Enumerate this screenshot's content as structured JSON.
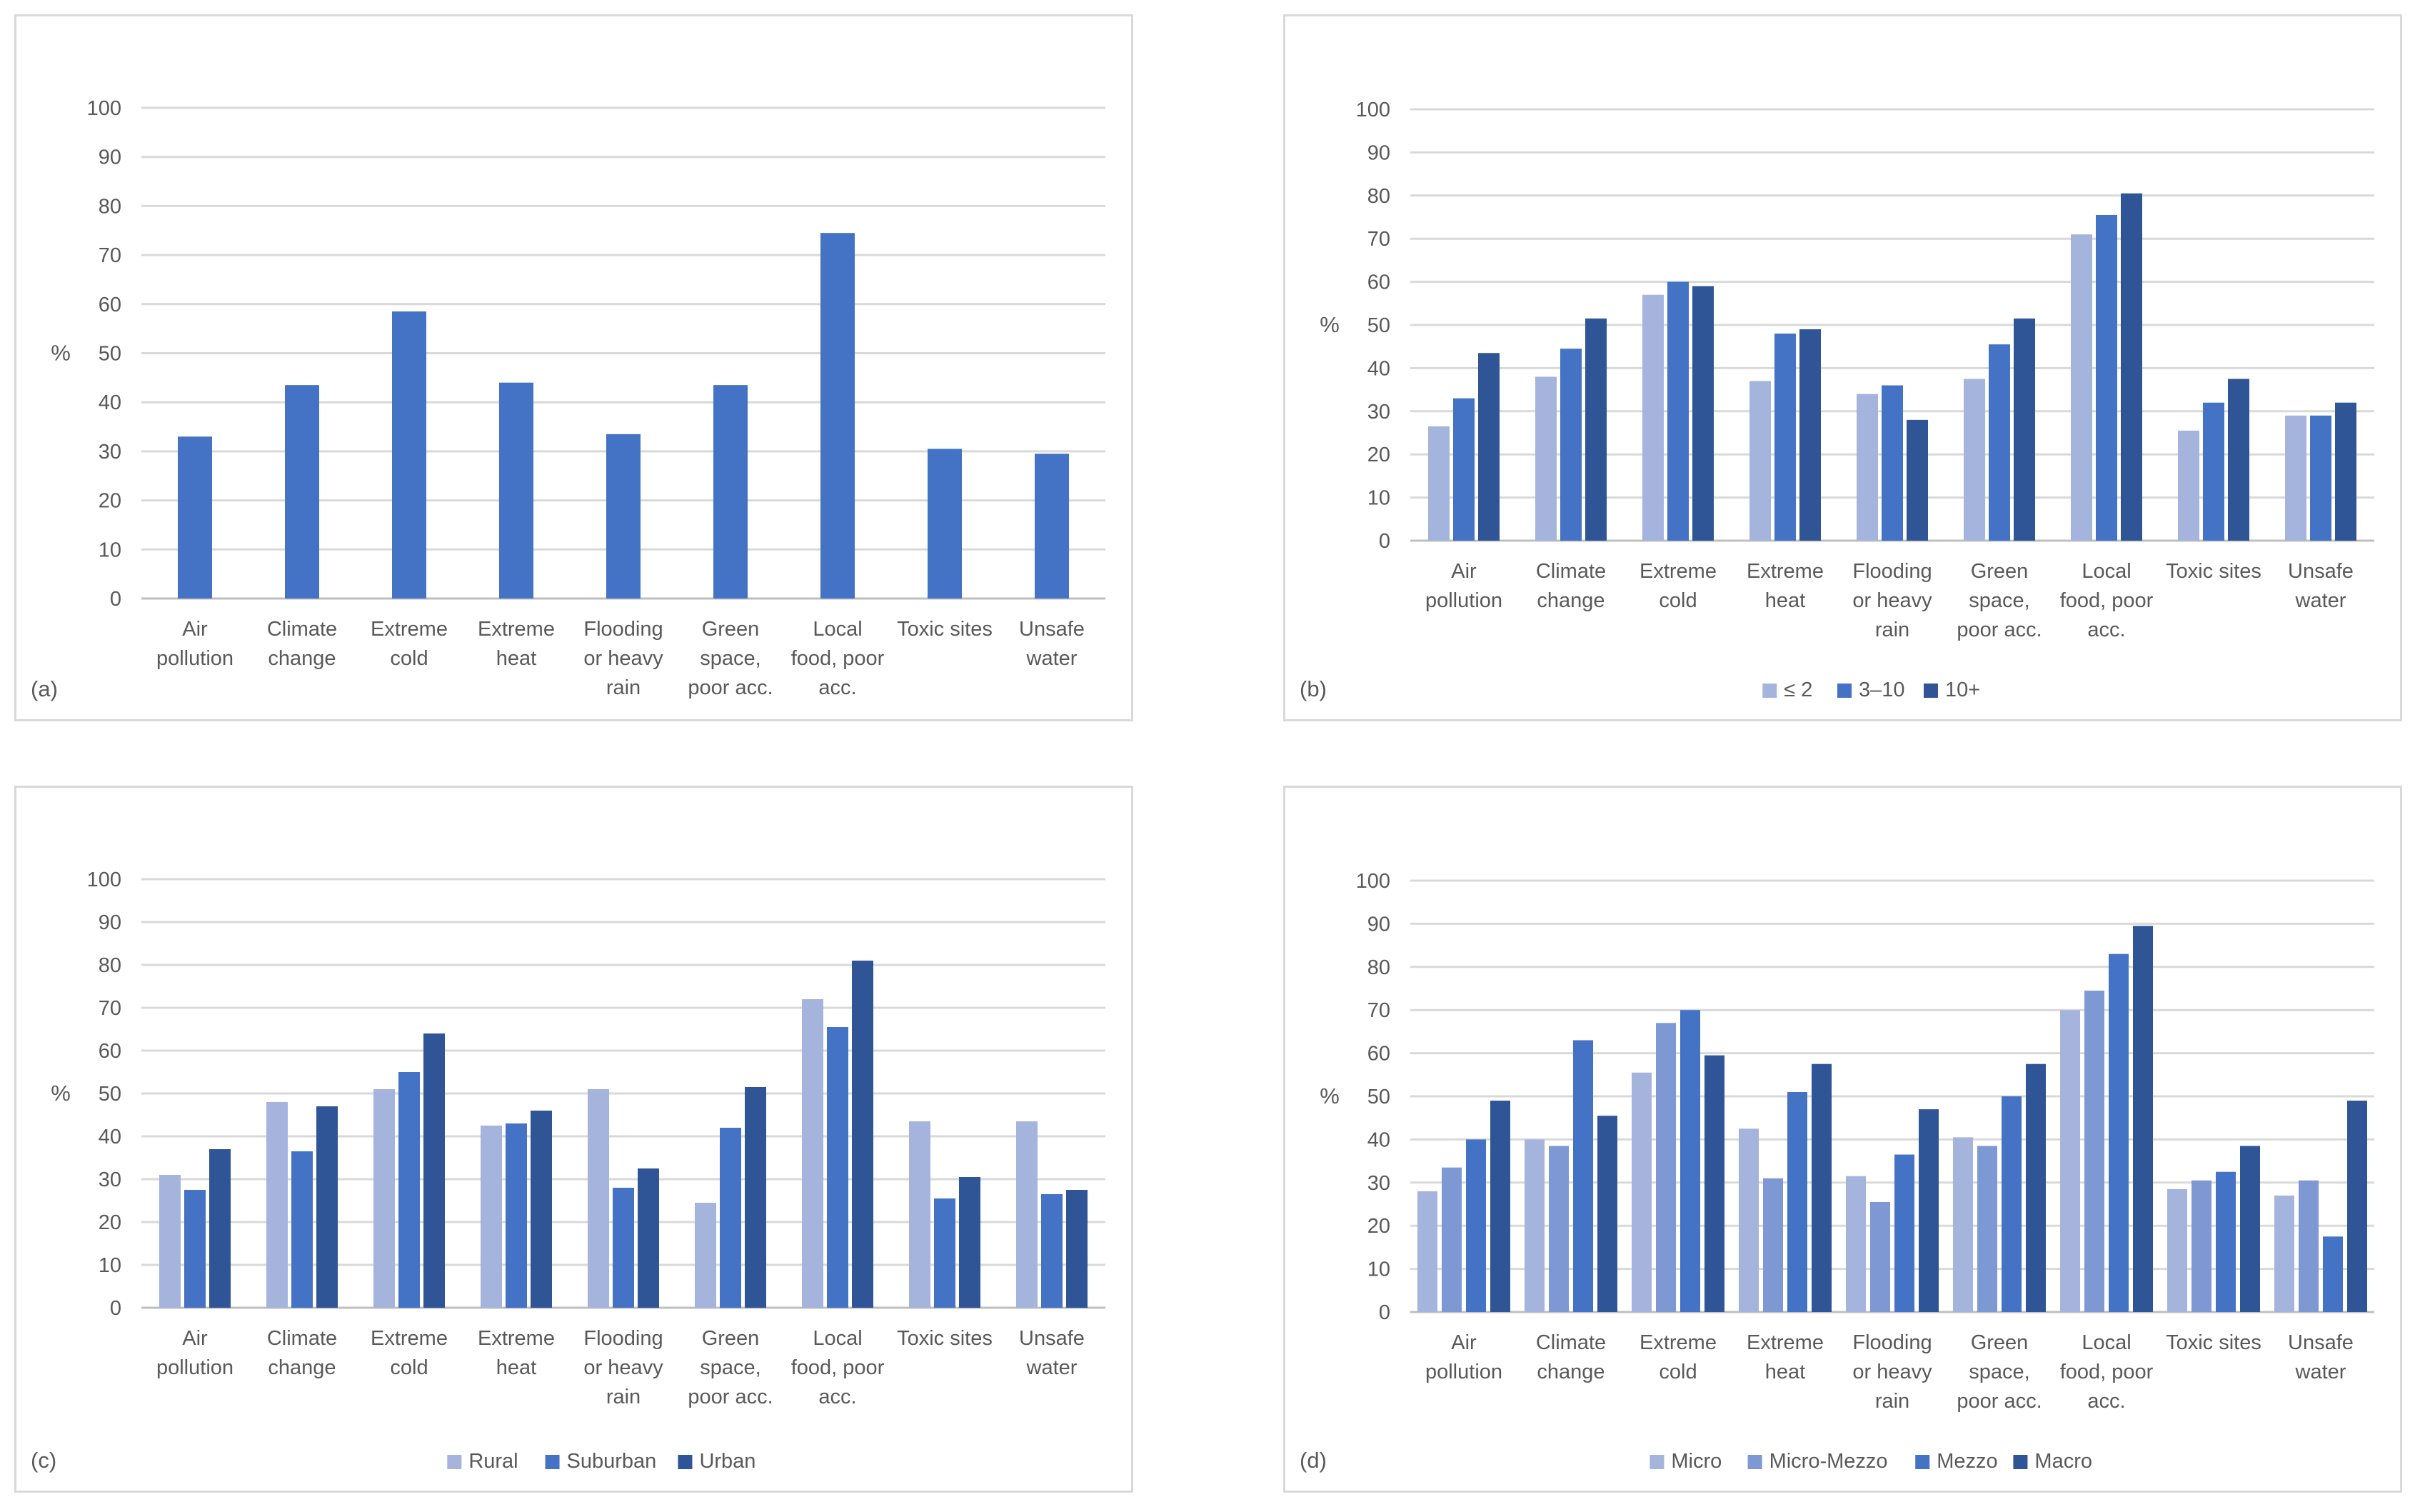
{
  "colors": {
    "single": "#4472c4",
    "light": "#a5b4dc",
    "lightmid": "#7e98d4",
    "mid": "#4472c4",
    "dark": "#2f5597",
    "grid": "#d9d9d9",
    "axis": "#bfbfbf",
    "text": "#595959"
  },
  "chart_data": [
    {
      "panel_label": "(a)",
      "type": "bar",
      "ylabel": "%",
      "ylim": [
        0,
        100
      ],
      "yticks": [
        "0",
        "10",
        "20",
        "30",
        "40",
        "50",
        "60",
        "70",
        "80",
        "90",
        "100"
      ],
      "categories": [
        [
          "Air",
          "pollution"
        ],
        [
          "Climate",
          "change"
        ],
        [
          "Extreme",
          "cold"
        ],
        [
          "Extreme",
          "heat"
        ],
        [
          "Flooding",
          "or heavy",
          "rain"
        ],
        [
          "Green",
          "space,",
          "poor acc."
        ],
        [
          "Local",
          "food, poor",
          "acc."
        ],
        [
          "Toxic sites"
        ],
        [
          "Unsafe",
          "water"
        ]
      ],
      "series": [
        {
          "name": "",
          "color": "#4472c4",
          "values": [
            33,
            43.5,
            58.5,
            44,
            33.5,
            43.5,
            74.5,
            30.5,
            29.5
          ]
        }
      ],
      "legend": []
    },
    {
      "panel_label": "(b)",
      "type": "bar",
      "ylabel": "%",
      "ylim": [
        0,
        100
      ],
      "yticks": [
        "0",
        "10",
        "20",
        "30",
        "40",
        "50",
        "60",
        "70",
        "80",
        "90",
        "100"
      ],
      "categories": [
        [
          "Air",
          "pollution"
        ],
        [
          "Climate",
          "change"
        ],
        [
          "Extreme",
          "cold"
        ],
        [
          "Extreme",
          "heat"
        ],
        [
          "Flooding",
          "or heavy",
          "rain"
        ],
        [
          "Green",
          "space,",
          "poor acc."
        ],
        [
          "Local",
          "food, poor",
          "acc."
        ],
        [
          "Toxic sites"
        ],
        [
          "Unsafe",
          "water"
        ]
      ],
      "series": [
        {
          "name": "≤ 2",
          "color": "#a5b4dc",
          "values": [
            26.5,
            38,
            57,
            37,
            34,
            37.5,
            71,
            25.5,
            29
          ]
        },
        {
          "name": "3–10",
          "color": "#4472c4",
          "values": [
            33,
            44.5,
            60,
            48,
            36,
            45.5,
            75.5,
            32,
            29
          ]
        },
        {
          "name": "10+",
          "color": "#2f5597",
          "values": [
            43.5,
            51.5,
            59,
            49,
            28,
            51.5,
            80.5,
            37.5,
            32
          ]
        }
      ],
      "legend": [
        "≤ 2",
        "3–10",
        "10+"
      ]
    },
    {
      "panel_label": "(c)",
      "type": "bar",
      "ylabel": "%",
      "ylim": [
        0,
        100
      ],
      "yticks": [
        "0",
        "10",
        "20",
        "30",
        "40",
        "50",
        "60",
        "70",
        "80",
        "90",
        "100"
      ],
      "categories": [
        [
          "Air",
          "pollution"
        ],
        [
          "Climate",
          "change"
        ],
        [
          "Extreme",
          "cold"
        ],
        [
          "Extreme",
          "heat"
        ],
        [
          "Flooding",
          "or heavy",
          "rain"
        ],
        [
          "Green",
          "space,",
          "poor acc."
        ],
        [
          "Local",
          "food, poor",
          "acc."
        ],
        [
          "Toxic sites"
        ],
        [
          "Unsafe",
          "water"
        ]
      ],
      "series": [
        {
          "name": "Rural",
          "color": "#a5b4dc",
          "values": [
            31,
            48,
            51,
            42.5,
            51,
            24.5,
            72,
            43.5,
            43.5
          ]
        },
        {
          "name": "Suburban",
          "color": "#4472c4",
          "values": [
            27.5,
            36.5,
            55,
            43,
            28,
            42,
            65.5,
            25.5,
            26.5
          ]
        },
        {
          "name": "Urban",
          "color": "#2f5597",
          "values": [
            37,
            47,
            64,
            46,
            32.5,
            51.5,
            81,
            30.5,
            27.5
          ]
        }
      ],
      "legend": [
        "Rural",
        "Suburban",
        "Urban"
      ]
    },
    {
      "panel_label": "(d)",
      "type": "bar",
      "ylabel": "%",
      "ylim": [
        0,
        100
      ],
      "yticks": [
        "0",
        "10",
        "20",
        "30",
        "40",
        "50",
        "60",
        "70",
        "80",
        "90",
        "100"
      ],
      "categories": [
        [
          "Air",
          "pollution"
        ],
        [
          "Climate",
          "change"
        ],
        [
          "Extreme",
          "cold"
        ],
        [
          "Extreme",
          "heat"
        ],
        [
          "Flooding",
          "or heavy",
          "rain"
        ],
        [
          "Green",
          "space,",
          "poor acc."
        ],
        [
          "Local",
          "food, poor",
          "acc."
        ],
        [
          "Toxic sites"
        ],
        [
          "Unsafe",
          "water"
        ]
      ],
      "series": [
        {
          "name": "Micro",
          "color": "#a5b4dc",
          "values": [
            28,
            40,
            55.5,
            42.5,
            31.5,
            40.5,
            70,
            28.5,
            27
          ]
        },
        {
          "name": "Micro-Mezzo",
          "color": "#7e98d4",
          "values": [
            33.5,
            38.5,
            67,
            31,
            25.5,
            38.5,
            74.5,
            30.5,
            30.5
          ]
        },
        {
          "name": "Mezzo",
          "color": "#4472c4",
          "values": [
            40,
            63,
            70,
            51,
            36.5,
            50,
            83,
            32.5,
            17.5
          ]
        },
        {
          "name": "Macro",
          "color": "#2f5597",
          "values": [
            49,
            45.5,
            59.5,
            57.5,
            47,
            57.5,
            89.5,
            38.5,
            49
          ]
        }
      ],
      "legend": [
        "Micro",
        "Micro-Mezzo",
        "Mezzo",
        "Macro"
      ]
    }
  ]
}
